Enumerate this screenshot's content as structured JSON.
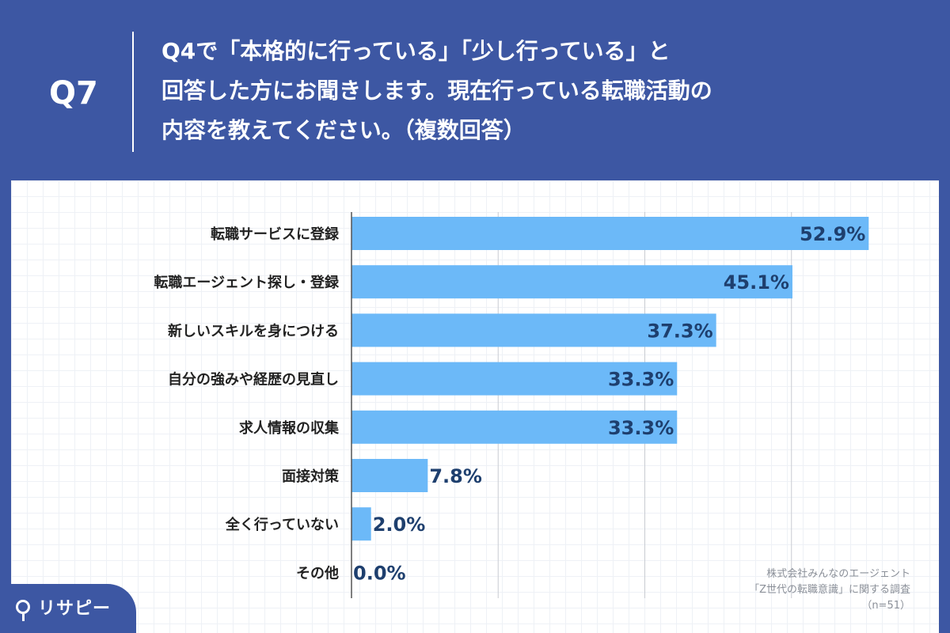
{
  "header": {
    "q_label": "Q7",
    "question_lines": [
      "Q4で「本格的に行っている」「少し行っている」と",
      "回答した方にお聞きします。現在行っている転職活動の",
      "内容を教えてください。（複数回答）"
    ]
  },
  "chart_data": {
    "type": "bar",
    "orientation": "horizontal",
    "categories": [
      "転職サービスに登録",
      "転職エージェント探し・登録",
      "新しいスキルを身につける",
      "自分の強みや経歴の見直し",
      "求人情報の収集",
      "面接対策",
      "全く行っていない",
      "その他"
    ],
    "values": [
      52.9,
      45.1,
      37.3,
      33.3,
      33.3,
      7.8,
      2.0,
      0.0
    ],
    "value_labels": [
      "52.9%",
      "45.1%",
      "37.3%",
      "33.3%",
      "33.3%",
      "7.8%",
      "2.0%",
      "0.0%"
    ],
    "xlim": [
      0,
      60
    ],
    "gridlines": [
      0,
      15,
      30,
      45
    ],
    "bar_color": "#6cb9f8",
    "grid": true
  },
  "source": {
    "line1": "株式会社みんなのエージェント",
    "line2": "「Z世代の転職意識」に関する調査",
    "line3": "（n=51）"
  },
  "logo": {
    "text": "リサピー"
  },
  "colors": {
    "background": "#3d57a3",
    "bar": "#6cb9f8",
    "value_text": "#1e3f6e"
  }
}
